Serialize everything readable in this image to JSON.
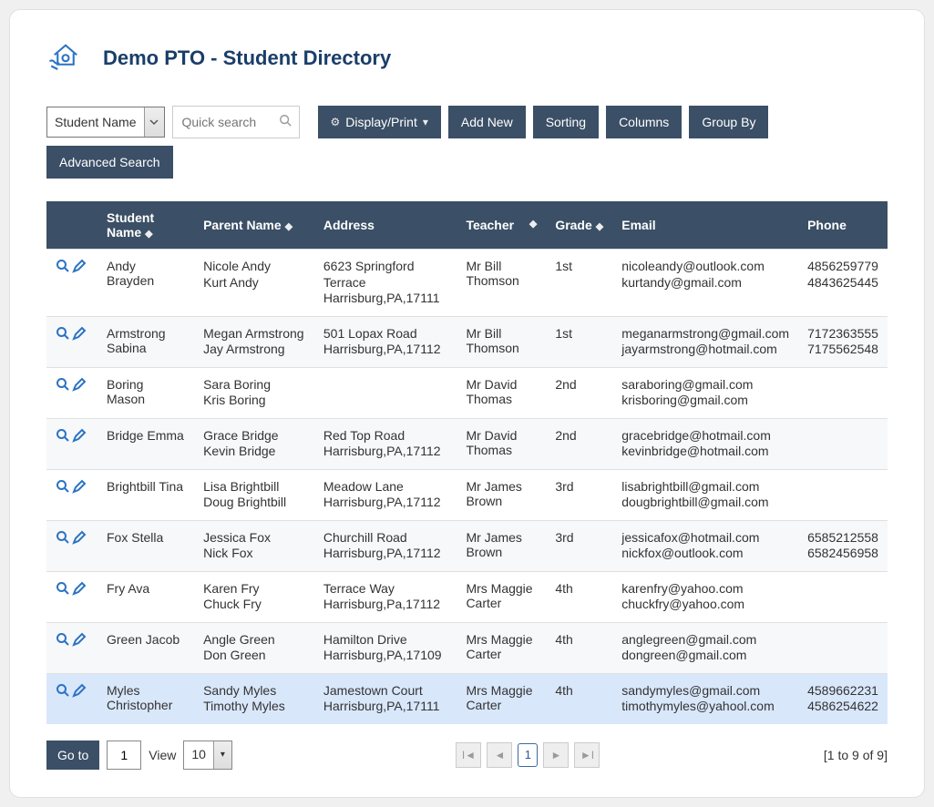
{
  "header": {
    "title": "Demo PTO - Student Directory"
  },
  "toolbar": {
    "filter_field": "Student Name",
    "search_placeholder": "Quick search",
    "display_print": "Display/Print",
    "add_new": "Add New",
    "sorting": "Sorting",
    "columns": "Columns",
    "group_by": "Group By",
    "advanced_search": "Advanced Search"
  },
  "table": {
    "headers": {
      "student": "Student Name",
      "parent": "Parent Name",
      "address": "Address",
      "teacher": "Teacher",
      "grade": "Grade",
      "email": "Email",
      "phone": "Phone"
    },
    "rows": [
      {
        "student": "Andy Brayden",
        "parents": [
          "Nicole Andy",
          "Kurt Andy"
        ],
        "address": [
          "6623 Springford Terrace",
          "Harrisburg,PA,17111"
        ],
        "teacher": "Mr Bill Thomson",
        "grade": "1st",
        "emails": [
          "nicoleandy@outlook.com",
          "kurtandy@gmail.com"
        ],
        "phones": [
          "4856259779",
          "4843625445"
        ],
        "highlight": false
      },
      {
        "student": "Armstrong Sabina",
        "parents": [
          "Megan Armstrong Jay Armstrong"
        ],
        "address": [
          "501 Lopax Road",
          "Harrisburg,PA,17112"
        ],
        "teacher": "Mr Bill Thomson",
        "grade": "1st",
        "emails": [
          "meganarmstrong@gmail.com",
          "jayarmstrong@hotmail.com"
        ],
        "phones": [
          "7172363555",
          "7175562548"
        ],
        "highlight": false
      },
      {
        "student": "Boring Mason",
        "parents": [
          "Sara Boring",
          "Kris Boring"
        ],
        "address": [],
        "teacher": "Mr David Thomas",
        "grade": "2nd",
        "emails": [
          "saraboring@gmail.com",
          "krisboring@gmail.com"
        ],
        "phones": [],
        "highlight": false
      },
      {
        "student": "Bridge Emma",
        "parents": [
          "Grace Bridge",
          "Kevin Bridge"
        ],
        "address": [
          "Red Top Road",
          "Harrisburg,PA,17112"
        ],
        "teacher": "Mr David Thomas",
        "grade": "2nd",
        "emails": [
          "gracebridge@hotmail.com",
          "kevinbridge@hotmail.com"
        ],
        "phones": [],
        "highlight": false
      },
      {
        "student": "Brightbill Tina",
        "parents": [
          "Lisa Brightbill",
          "Doug Brightbill"
        ],
        "address": [
          "Meadow Lane",
          "Harrisburg,PA,17112"
        ],
        "teacher": "Mr James Brown",
        "grade": "3rd",
        "emails": [
          "lisabrightbill@gmail.com",
          "dougbrightbill@gmail.com"
        ],
        "phones": [],
        "highlight": false
      },
      {
        "student": "Fox Stella",
        "parents": [
          "Jessica Fox",
          "Nick Fox"
        ],
        "address": [
          "Churchill Road",
          "Harrisburg,PA,17112"
        ],
        "teacher": "Mr James Brown",
        "grade": "3rd",
        "emails": [
          "jessicafox@hotmail.com",
          "nickfox@outlook.com"
        ],
        "phones": [
          "6585212558",
          "6582456958"
        ],
        "highlight": false
      },
      {
        "student": "Fry Ava",
        "parents": [
          "Karen Fry",
          "Chuck Fry"
        ],
        "address": [
          "Terrace Way",
          "Harrisburg,Pa,17112"
        ],
        "teacher": "Mrs Maggie Carter",
        "grade": "4th",
        "emails": [
          "karenfry@yahoo.com",
          "chuckfry@yahoo.com"
        ],
        "phones": [],
        "highlight": false
      },
      {
        "student": "Green Jacob",
        "parents": [
          "Angle Green",
          "Don Green"
        ],
        "address": [
          "Hamilton Drive",
          "Harrisburg,PA,17109"
        ],
        "teacher": "Mrs Maggie Carter",
        "grade": "4th",
        "emails": [
          "anglegreen@gmail.com",
          "dongreen@gmail.com"
        ],
        "phones": [],
        "highlight": false
      },
      {
        "student": "Myles Christopher",
        "parents": [
          "Sandy Myles",
          "Timothy Myles"
        ],
        "address": [
          "Jamestown Court",
          "Harrisburg,PA,17111"
        ],
        "teacher": "Mrs Maggie Carter",
        "grade": "4th",
        "emails": [
          "sandymyles@gmail.com",
          "timothymyles@yahool.com"
        ],
        "phones": [
          "4589662231",
          "4586254622"
        ],
        "highlight": true
      }
    ]
  },
  "footer": {
    "goto": "Go to",
    "goto_value": "1",
    "view": "View",
    "page_size": "10",
    "current_page": "1",
    "count_text": "[1 to 9 of 9]"
  },
  "colors": {
    "header_bg": "#3b4f66",
    "accent": "#2b73c4",
    "row_alt": "#f7f8f9",
    "row_highlight": "#d9e7fb"
  }
}
